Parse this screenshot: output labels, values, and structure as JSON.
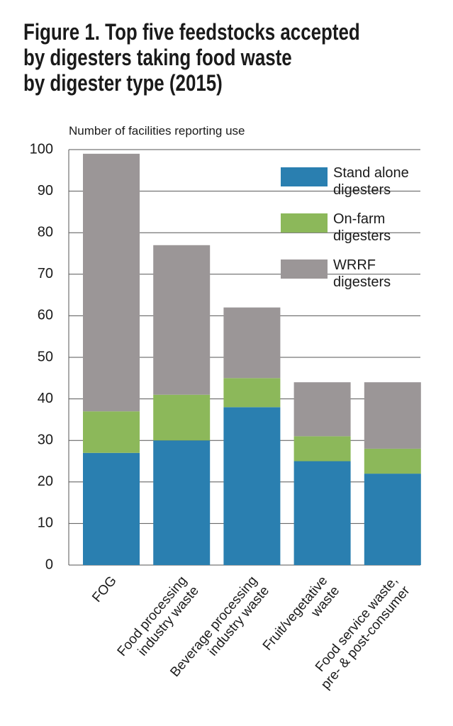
{
  "chart_data": {
    "type": "stacked_bar",
    "title": [
      "Figure 1. Top five feedstocks accepted",
      "by digesters taking food waste",
      "by digester type (2015)"
    ],
    "y_label": "Number of facilities reporting use",
    "categories": [
      [
        "FOG"
      ],
      [
        "Food processing",
        "industry waste"
      ],
      [
        "Beverage processing",
        "industry waste"
      ],
      [
        "Fruit/vegetative",
        "waste"
      ],
      [
        "Food service waste,",
        "pre- & post-consumer"
      ]
    ],
    "series": [
      {
        "name": "Stand alone digesters",
        "color": "#2a7fb0",
        "values": [
          27,
          30,
          38,
          25,
          22
        ]
      },
      {
        "name": "On-farm digesters",
        "color": "#8cb85a",
        "values": [
          10,
          11,
          7,
          6,
          6
        ]
      },
      {
        "name": "WRRF digesters",
        "color": "#9b9697",
        "values": [
          62,
          36,
          17,
          13,
          16
        ]
      }
    ],
    "ylim": [
      0,
      100
    ],
    "yticks": [
      0,
      10,
      20,
      30,
      40,
      50,
      60,
      70,
      80,
      90,
      100
    ],
    "grid": true
  }
}
